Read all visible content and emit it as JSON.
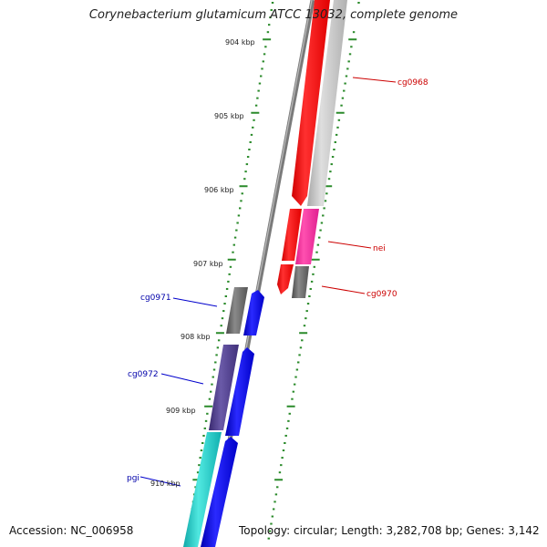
{
  "title": "Corynebacterium glutamicum ATCC 13032, complete genome",
  "accession": "Accession: NC_006958",
  "topology": "Topology: circular; Length: 3,282,708 bp; Genes: 3,142",
  "scale_labels": [
    "904 kbp",
    "905 kbp",
    "906 kbp",
    "907 kbp",
    "908 kbp",
    "909 kbp",
    "910 kbp"
  ],
  "genes": [
    {
      "name": "cg0968",
      "strand": "reverse",
      "color": "#cc0000"
    },
    {
      "name": "nei",
      "strand": "reverse",
      "color": "#cc0000"
    },
    {
      "name": "cg0970",
      "strand": "reverse",
      "color": "#cc0000"
    },
    {
      "name": "cg0971",
      "strand": "forward",
      "color": "#0000aa"
    },
    {
      "name": "cg0972",
      "strand": "forward",
      "color": "#0000aa"
    },
    {
      "name": "pgi",
      "strand": "forward",
      "color": "#0000aa"
    }
  ],
  "colors": {
    "tick": "#2a8a2a",
    "reverse_cds": "#ff0000",
    "forward_cds": "#0000ee",
    "backbone": "#808080"
  }
}
